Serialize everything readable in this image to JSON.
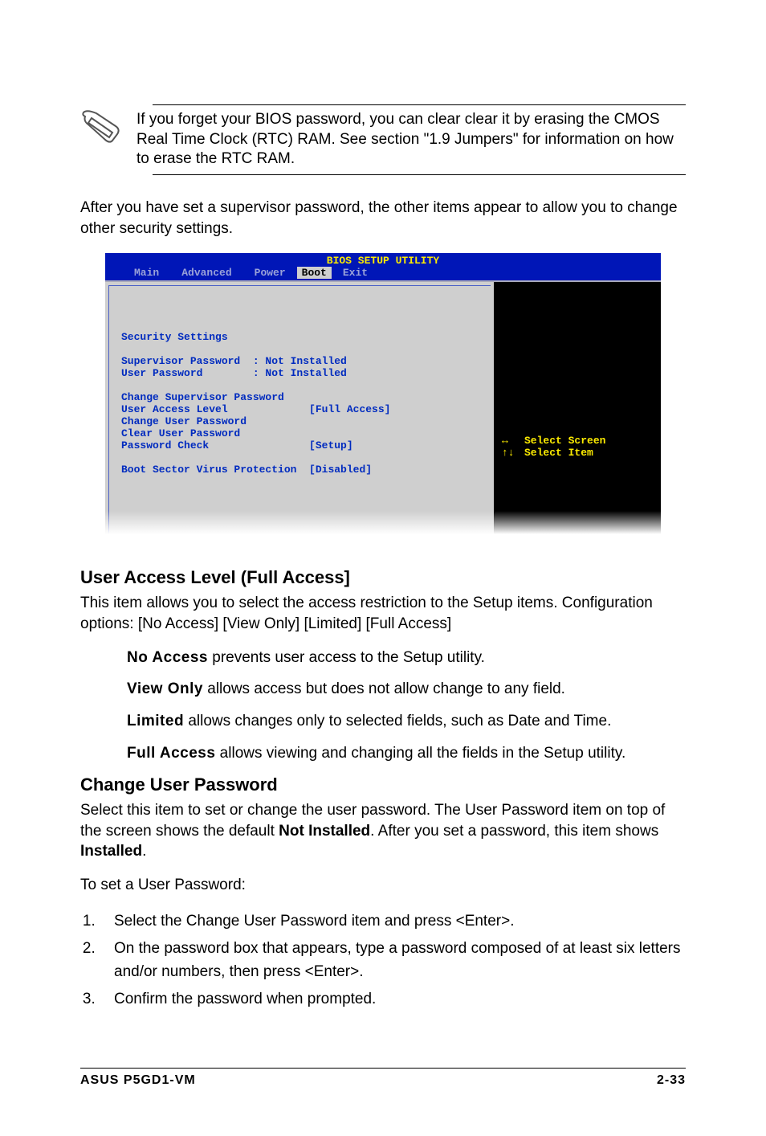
{
  "note": {
    "text": "If you forget your BIOS password, you can clear clear it by erasing the CMOS Real Time Clock (RTC) RAM. See section \"1.9 Jumpers\" for information on how to erase the RTC RAM."
  },
  "intro": "After you have set a supervisor password, the other items appear to allow you to change other security settings.",
  "bios": {
    "title": "BIOS SETUP UTILITY",
    "tabs": [
      "Main",
      "Advanced",
      "Power",
      "Boot",
      "Exit"
    ],
    "active_tab_index": 3,
    "panel_title": "Security Settings",
    "rows": [
      {
        "label": "Supervisor Password",
        "sep": ":",
        "value": "Not Installed"
      },
      {
        "label": "User Password",
        "sep": ":",
        "value": "Not Installed"
      }
    ],
    "items": [
      {
        "label": "Change Supervisor Password",
        "value": ""
      },
      {
        "label": "User Access Level",
        "value": "[Full Access]"
      },
      {
        "label": "Change User Password",
        "value": ""
      },
      {
        "label": "Clear User Password",
        "value": ""
      },
      {
        "label": "Password Check",
        "value": "[Setup]"
      }
    ],
    "extra": {
      "label": "Boot Sector Virus Protection",
      "value": "[Disabled]"
    },
    "hints": [
      {
        "keys": "↔",
        "text": "Select Screen"
      },
      {
        "keys": "↑↓",
        "text": "Select Item"
      }
    ],
    "colors": {
      "header_bg": "#0016b7",
      "header_title": "#fbea00",
      "tab_inactive": "#9aa2d9",
      "tab_active_bg": "#cfcfcf",
      "left_bg": "#cfcfcf",
      "left_fg": "#002bbf",
      "right_bg": "#000000",
      "right_fg": "#ffffff",
      "hint_fg": "#fbea00"
    }
  },
  "section1": {
    "heading": "User Access Level (Full Access]",
    "p": "This item allows you to select the access restriction to the Setup items. Configuration options: [No Access] [View Only] [Limited] [Full Access]",
    "opts": [
      {
        "lead": "No Access",
        "rest": " prevents user access to the Setup utility."
      },
      {
        "lead": "View Only",
        "rest": " allows access but does not allow change to any field."
      },
      {
        "lead": "Limited",
        "rest": " allows changes only to selected fields, such as Date and Time."
      },
      {
        "lead": "Full Access",
        "rest": " allows viewing and changing all the fields in the Setup utility."
      }
    ]
  },
  "section2": {
    "heading": "Change User Password",
    "p_parts": {
      "a": "Select this item to set or change the user password. The User Password item on top of the screen shows the default ",
      "b": "Not Installed",
      "c": ". After you set a password, this item shows ",
      "d": "Installed",
      "e": "."
    },
    "p2": "To set a User Password:",
    "steps": [
      "Select the Change User Password item and press <Enter>.",
      "On the password box that appears, type a password composed of at least six letters and/or numbers, then press <Enter>.",
      "Confirm the password when prompted."
    ]
  },
  "footer": {
    "left": "ASUS P5GD1-VM",
    "right": "2-33"
  }
}
